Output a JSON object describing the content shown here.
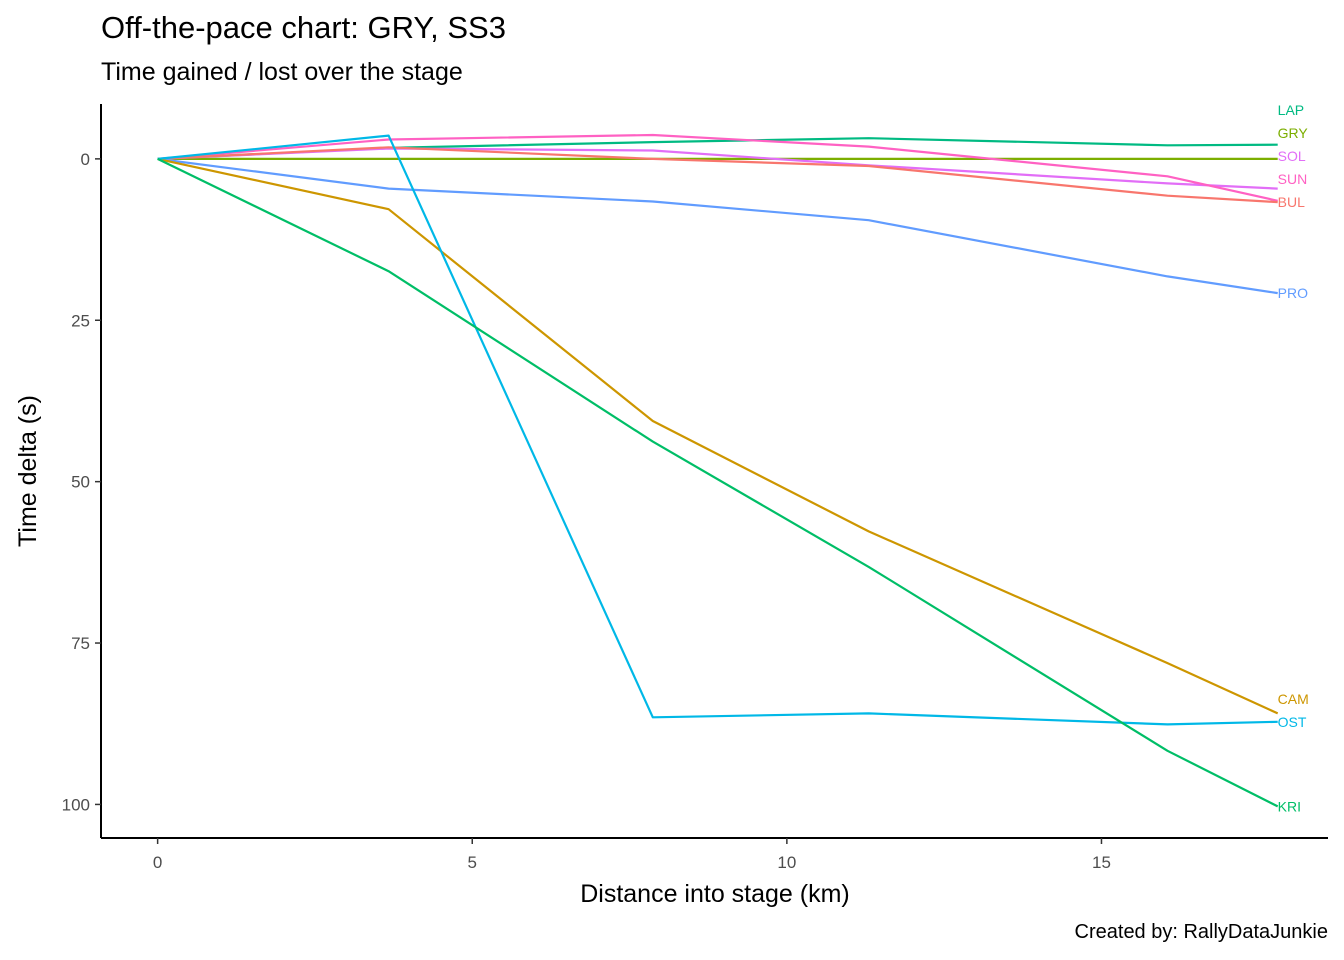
{
  "chart_data": {
    "type": "line",
    "title": "Off-the-pace chart: GRY, SS3",
    "subtitle": "Time gained / lost over the stage",
    "caption": "Created by: RallyDataJunkie",
    "xlabel": "Distance into stage (km)",
    "ylabel": "Time delta (s)",
    "xlim": [
      -0.9,
      18.6
    ],
    "ylim": [
      -8.5,
      105.2
    ],
    "y_reversed": true,
    "xticks": [
      0,
      5,
      10,
      15
    ],
    "yticks": [
      0,
      25,
      50,
      75,
      100
    ],
    "grid": false,
    "legend": "none (series labelled at line ends)",
    "x": [
      0,
      3.67,
      7.87,
      11.3,
      16.05,
      17.8
    ],
    "series": [
      {
        "name": "LAP",
        "color": "#00BA82",
        "values": [
          0,
          -1.7,
          -2.6,
          -3.2,
          -2.1,
          -2.2
        ]
      },
      {
        "name": "GRY",
        "color": "#7CAE00",
        "values": [
          0,
          0,
          0,
          0,
          0,
          0
        ]
      },
      {
        "name": "SOL",
        "color": "#E26EF7",
        "values": [
          0,
          -1.6,
          -1.3,
          1.0,
          3.8,
          4.6
        ]
      },
      {
        "name": "SUN",
        "color": "#FF61C3",
        "values": [
          0,
          -3.0,
          -3.7,
          -1.9,
          2.7,
          6.5
        ]
      },
      {
        "name": "BUL",
        "color": "#F8766D",
        "values": [
          0,
          -1.8,
          0,
          1.1,
          5.7,
          6.7
        ]
      },
      {
        "name": "PRO",
        "color": "#619CFF",
        "values": [
          0,
          4.6,
          6.6,
          9.5,
          18.2,
          20.8
        ]
      },
      {
        "name": "CAM",
        "color": "#CD9600",
        "values": [
          0,
          7.8,
          40.6,
          57.7,
          78.1,
          85.9
        ]
      },
      {
        "name": "OST",
        "color": "#00B8E7",
        "values": [
          0,
          -3.6,
          86.5,
          85.9,
          87.6,
          87.2
        ]
      },
      {
        "name": "KRI",
        "color": "#00BE67",
        "values": [
          0,
          17.4,
          43.8,
          63.2,
          91.7,
          100.3
        ]
      }
    ]
  }
}
